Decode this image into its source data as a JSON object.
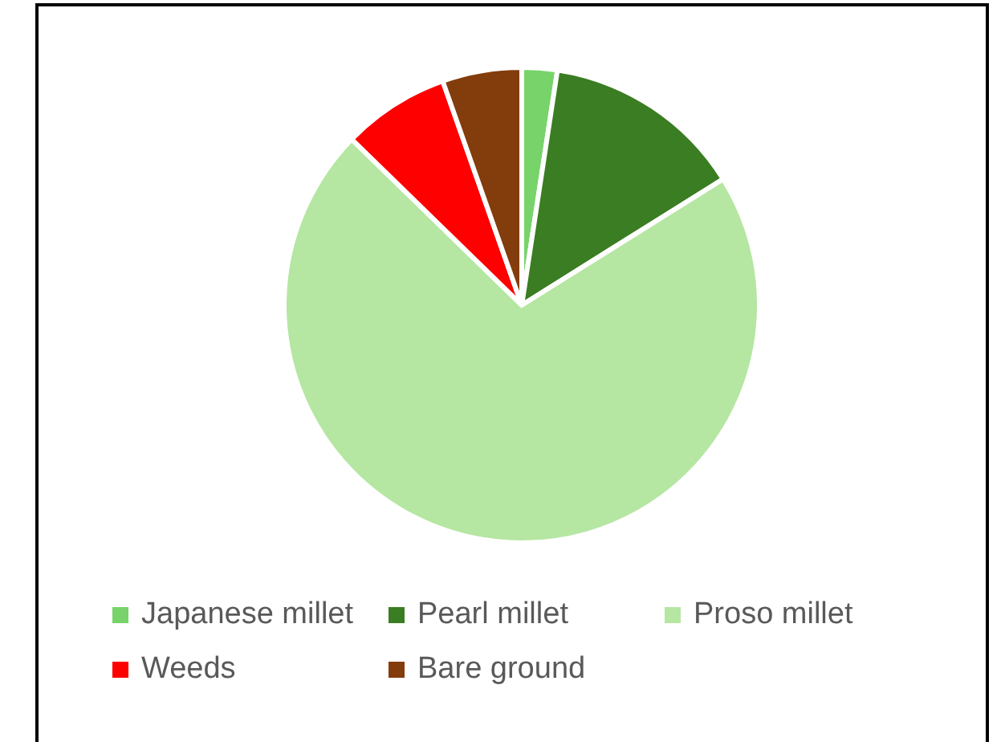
{
  "chart_data": {
    "type": "pie",
    "categories": [
      "Japanese millet",
      "Pearl millet",
      "Proso millet",
      "Weeds",
      "Bare ground"
    ],
    "values": [
      2.4,
      13.7,
      71.2,
      7.3,
      5.4
    ],
    "colors": [
      "#77d36a",
      "#3a7d22",
      "#b5e6a2",
      "#ff0000",
      "#833c0b"
    ],
    "legend": "bottom"
  }
}
